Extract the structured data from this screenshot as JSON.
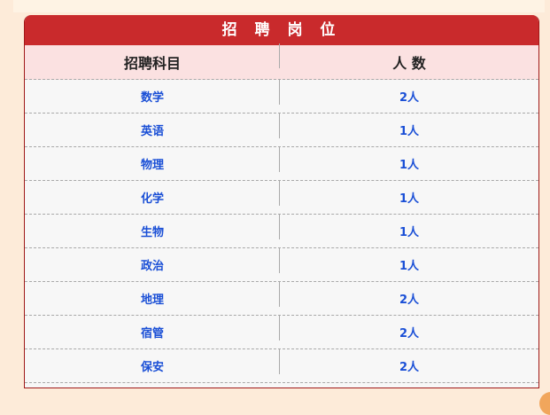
{
  "table": {
    "title": "招 聘 岗 位",
    "headers": [
      "招聘科目",
      "人 数"
    ],
    "rows": [
      [
        "数学",
        "2人"
      ],
      [
        "英语",
        "1人"
      ],
      [
        "物理",
        "1人"
      ],
      [
        "化学",
        "1人"
      ],
      [
        "生物",
        "1人"
      ],
      [
        "政治",
        "1人"
      ],
      [
        "地理",
        "2人"
      ],
      [
        "宿管",
        "2人"
      ],
      [
        "保安",
        "2人"
      ]
    ]
  },
  "colors": {
    "title_bg": "#c92a2c",
    "header_bg": "#fbe1e1",
    "value_text": "#1a4fd6",
    "page_bg": "#fdebd9"
  }
}
